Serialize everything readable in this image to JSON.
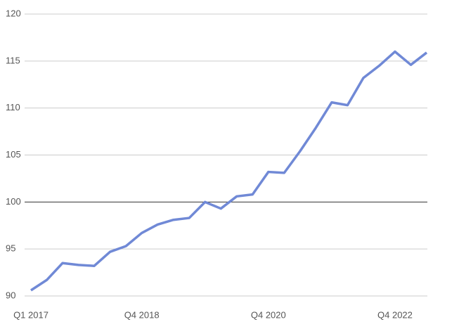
{
  "chart_data": {
    "type": "line",
    "categories": [
      "Q1 2017",
      null,
      null,
      null,
      null,
      null,
      null,
      "Q4 2018",
      null,
      null,
      null,
      null,
      null,
      null,
      null,
      "Q4 2020",
      null,
      null,
      null,
      null,
      null,
      null,
      null,
      "Q4 2022",
      null,
      null
    ],
    "series": [
      {
        "color": "#7089d6",
        "values": [
          90.6,
          91.7,
          93.5,
          93.3,
          93.2,
          94.7,
          95.3,
          96.7,
          97.6,
          98.1,
          98.3,
          100.0,
          99.3,
          100.6,
          100.8,
          103.2,
          103.1,
          105.4,
          107.9,
          110.6,
          110.3,
          113.2,
          114.5,
          116.0,
          114.6,
          115.9
        ]
      }
    ],
    "ylim": [
      90,
      120
    ],
    "yticks": [
      90,
      95,
      100,
      105,
      110,
      115,
      120
    ],
    "grid": true,
    "baseline": 100
  }
}
